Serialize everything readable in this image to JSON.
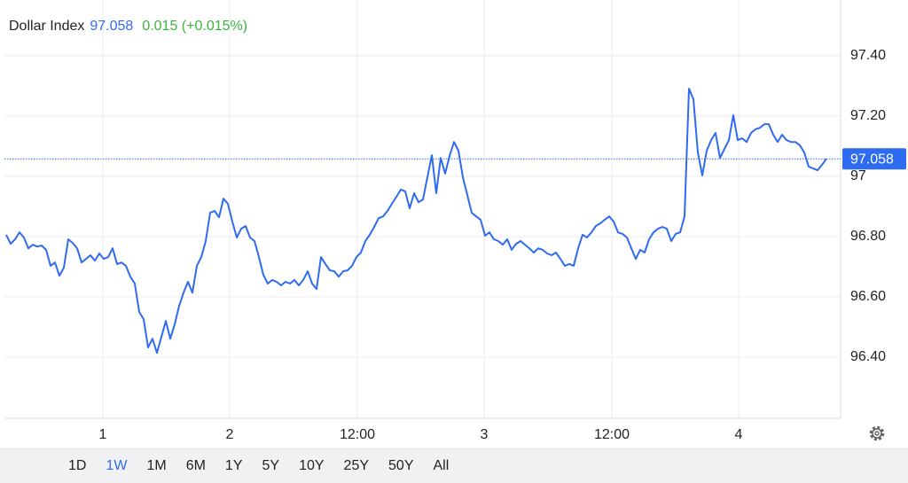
{
  "header": {
    "title": "Dollar Index",
    "change": "0.015 (+0.015%)"
  },
  "chart_data": {
    "type": "line",
    "color": "#2f6bf0",
    "grid": true,
    "y_axis_side": "right",
    "last_price_line": true,
    "xlim": [
      -0.4,
      188.2
    ],
    "ylim": [
      96.197,
      97.585
    ],
    "xticks": [
      {
        "value": 21.8,
        "label": "1"
      },
      {
        "value": 50.4,
        "label": "2"
      },
      {
        "value": 79.2,
        "label": "12:00"
      },
      {
        "value": 107.8,
        "label": "3"
      },
      {
        "value": 136.6,
        "label": "12:00"
      },
      {
        "value": 165.2,
        "label": "4"
      }
    ],
    "yticks": [
      {
        "value": 96.4,
        "label": "96.40"
      },
      {
        "value": 96.6,
        "label": "96.60"
      },
      {
        "value": 96.8,
        "label": "96.80"
      },
      97,
      {
        "value": 97.2,
        "label": "97.20"
      },
      {
        "value": 97.4,
        "label": "97.40"
      }
    ],
    "values": [
      96.806,
      96.776,
      96.791,
      96.814,
      96.797,
      96.761,
      96.773,
      96.767,
      96.77,
      96.756,
      96.703,
      96.714,
      96.67,
      96.697,
      96.791,
      96.779,
      96.761,
      96.714,
      96.726,
      96.738,
      96.72,
      96.744,
      96.726,
      96.732,
      96.761,
      96.709,
      96.714,
      96.703,
      96.667,
      96.644,
      96.55,
      96.526,
      96.432,
      96.461,
      96.414,
      96.467,
      96.52,
      96.461,
      96.509,
      96.57,
      96.614,
      96.65,
      96.614,
      96.703,
      96.732,
      96.785,
      96.879,
      96.885,
      96.864,
      96.926,
      96.909,
      96.85,
      96.797,
      96.826,
      96.835,
      96.797,
      96.785,
      96.732,
      96.673,
      96.644,
      96.656,
      96.65,
      96.638,
      96.65,
      96.644,
      96.656,
      96.638,
      96.656,
      96.685,
      96.644,
      96.626,
      96.732,
      96.709,
      96.688,
      96.685,
      96.667,
      96.685,
      96.688,
      96.703,
      96.732,
      96.747,
      96.785,
      96.806,
      96.832,
      96.861,
      96.867,
      96.885,
      96.909,
      96.932,
      96.956,
      96.95,
      96.894,
      96.944,
      96.914,
      96.923,
      96.997,
      97.07,
      96.944,
      97.061,
      97.009,
      97.067,
      97.114,
      97.085,
      96.997,
      96.938,
      96.879,
      96.867,
      96.856,
      96.803,
      96.814,
      96.791,
      96.785,
      96.773,
      96.791,
      96.756,
      96.776,
      96.785,
      96.773,
      96.761,
      96.747,
      96.761,
      96.756,
      96.744,
      96.738,
      96.747,
      96.726,
      96.703,
      96.709,
      96.703,
      96.761,
      96.806,
      96.797,
      96.814,
      96.835,
      96.844,
      96.856,
      96.867,
      96.85,
      96.814,
      96.809,
      96.797,
      96.761,
      96.726,
      96.756,
      96.747,
      96.791,
      96.814,
      96.826,
      96.832,
      96.826,
      96.785,
      96.809,
      96.814,
      96.867,
      97.291,
      97.256,
      97.079,
      97.003,
      97.085,
      97.12,
      97.144,
      97.061,
      97.091,
      97.12,
      97.203,
      97.12,
      97.126,
      97.114,
      97.144,
      97.156,
      97.161,
      97.173,
      97.173,
      97.138,
      97.114,
      97.138,
      97.12,
      97.114,
      97.114,
      97.103,
      97.079,
      97.032,
      97.026,
      97.02,
      97.038,
      97.058
    ]
  },
  "range_buttons": [
    "1D",
    "1W",
    "1M",
    "6M",
    "1Y",
    "5Y",
    "10Y",
    "25Y",
    "50Y",
    "All"
  ],
  "selected_range_index": 1
}
